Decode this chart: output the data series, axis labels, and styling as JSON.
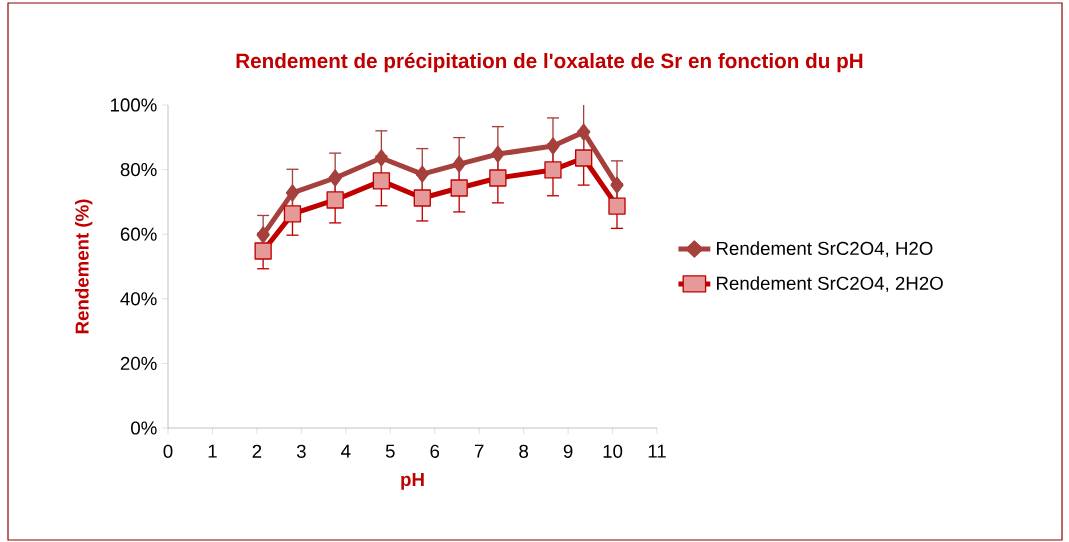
{
  "chart_data": {
    "type": "line",
    "title": "Rendement de précipitation de l'oxalate de Sr en fonction du pH",
    "xlabel": "pH",
    "ylabel": "Rendement (%)",
    "x": [
      2.14,
      2.8,
      3.76,
      4.8,
      5.72,
      6.55,
      7.42,
      8.66,
      9.35,
      10.1
    ],
    "series": [
      {
        "name": "Rendement SrC2O4, H2O",
        "color": "#a5403d",
        "marker": "diamond",
        "values": [
          59.8,
          72.8,
          77.4,
          83.6,
          78.6,
          81.7,
          84.8,
          87.3,
          91.6,
          75.2
        ],
        "errors": [
          6,
          7.3,
          7.7,
          8.4,
          7.9,
          8.2,
          8.5,
          8.7,
          9.2,
          7.5
        ]
      },
      {
        "name": "Rendement SrC2O4, 2H2O",
        "color": "#c00000",
        "marker": "square",
        "values": [
          54.8,
          66.3,
          70.6,
          76.5,
          71.2,
          74.3,
          77.4,
          79.9,
          83.6,
          68.7
        ],
        "errors": [
          5.5,
          6.6,
          7.1,
          7.7,
          7.1,
          7.4,
          7.7,
          8,
          8.4,
          6.9
        ]
      }
    ],
    "xlim": [
      0,
      11
    ],
    "xticks": [
      0,
      1,
      2,
      3,
      4,
      5,
      6,
      7,
      8,
      9,
      10,
      11
    ],
    "ylim": [
      0,
      100
    ],
    "yticks": [
      {
        "value": 0,
        "label": "0%"
      },
      {
        "value": 20,
        "label": "20%"
      },
      {
        "value": 40,
        "label": "40%"
      },
      {
        "value": 60,
        "label": "60%"
      },
      {
        "value": 80,
        "label": "80%"
      },
      {
        "value": 100,
        "label": "100%"
      }
    ],
    "grid": false,
    "legend": "right",
    "line_style": "solid"
  }
}
